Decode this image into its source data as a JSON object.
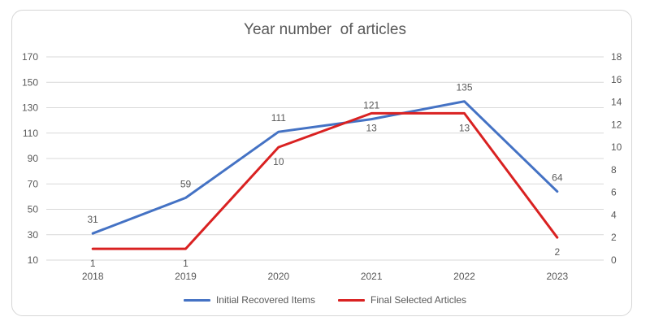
{
  "title": "Year number  of articles",
  "chart_data": {
    "type": "line",
    "categories": [
      "2018",
      "2019",
      "2020",
      "2021",
      "2022",
      "2023"
    ],
    "series": [
      {
        "name": "Initial Recovered Items",
        "color": "#4472C4",
        "axis": "left",
        "label_side": "above",
        "values": [
          31,
          59,
          111,
          121,
          135,
          64
        ]
      },
      {
        "name": "Final Selected Articles",
        "color": "#D92121",
        "axis": "right",
        "label_side": "below",
        "values": [
          1,
          1,
          10,
          13,
          13,
          2
        ]
      }
    ],
    "axes": {
      "left": {
        "min": 10,
        "max": 170,
        "step": 20,
        "ticks": [
          "170",
          "150",
          "130",
          "110",
          "90",
          "70",
          "50",
          "30",
          "10"
        ]
      },
      "right": {
        "min": 0,
        "max": 18,
        "step": 2,
        "ticks": [
          "18",
          "16",
          "14",
          "12",
          "10",
          "8",
          "6",
          "4",
          "2",
          "0"
        ]
      }
    },
    "grid": true,
    "legend_position": "bottom"
  },
  "colors": {
    "grid": "#D9D9D9",
    "text": "#595959",
    "border": "#D6D6D6",
    "background": "#FFFFFF"
  }
}
